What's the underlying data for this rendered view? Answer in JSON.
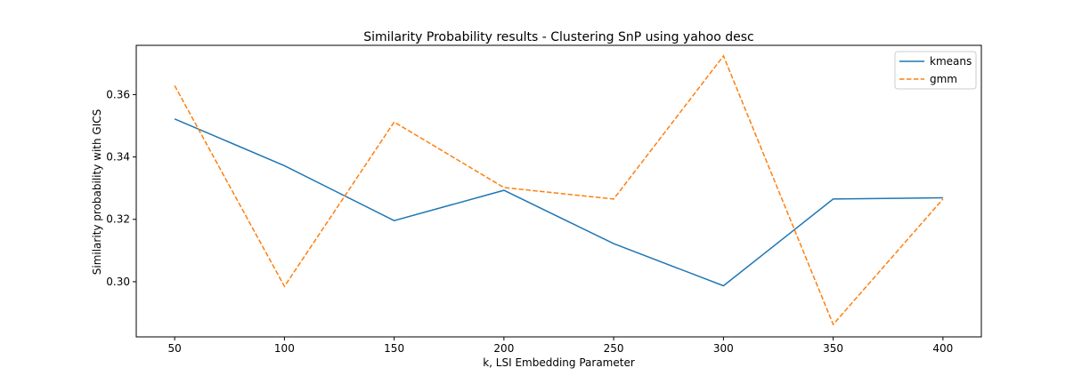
{
  "chart_data": {
    "type": "line",
    "title": "Similarity Probability results - Clustering SnP using yahoo desc",
    "xlabel": "k, LSI Embedding Parameter",
    "ylabel": "Similarity probability with GICS",
    "x": [
      50,
      100,
      150,
      200,
      250,
      300,
      350,
      400
    ],
    "xlim": [
      32.5,
      417.5
    ],
    "ylim": [
      0.2823,
      0.3758
    ],
    "xticks": [
      "50",
      "100",
      "150",
      "200",
      "250",
      "300",
      "350",
      "400"
    ],
    "yticks": [
      "0.30",
      "0.32",
      "0.34",
      "0.36"
    ],
    "series": [
      {
        "name": "kmeans",
        "color": "#1f77b4",
        "dash": "solid",
        "values": [
          0.3522,
          0.3372,
          0.3196,
          0.3293,
          0.3122,
          0.2987,
          0.3265,
          0.3269
        ]
      },
      {
        "name": "gmm",
        "color": "#ff7f0e",
        "dash": "dashed",
        "values": [
          0.3629,
          0.2985,
          0.3512,
          0.3302,
          0.3265,
          0.3724,
          0.2863,
          0.3265
        ]
      }
    ],
    "legend": "top-right",
    "grid": false
  }
}
